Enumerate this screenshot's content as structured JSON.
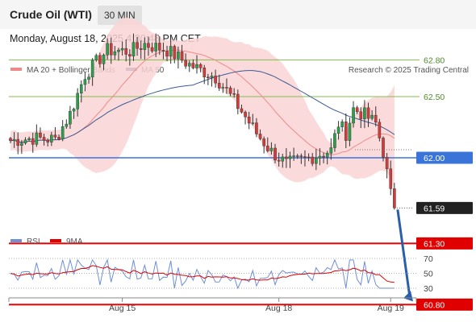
{
  "header": {
    "title": "Crude Oil (WTI)",
    "timeframe": "30 MIN",
    "date": "Monday, August 18, 2025 4:30:48 PM CET"
  },
  "legend": {
    "items": [
      {
        "label": "MA 20 + Bollinger Bands",
        "color": "#f08a8a"
      },
      {
        "label": "MA 50",
        "color": "#3c5a96"
      }
    ],
    "source": "Research © 2025 Trading Central"
  },
  "rsi_legend": {
    "items": [
      {
        "label": "RSI",
        "color": "#6f8fd8"
      },
      {
        "label": "9MA",
        "color": "#e00000"
      }
    ]
  },
  "chart_data": [
    {
      "type": "line",
      "subtype": "candlestick",
      "series": [
        {
          "name": "MA 20 + Bollinger Bands"
        },
        {
          "name": "MA 50"
        }
      ],
      "x_ticks": [
        {
          "label": "Aug 15",
          "index": 30
        },
        {
          "label": "Aug 18",
          "index": 72
        },
        {
          "label": "Aug 19",
          "index": 102
        }
      ],
      "ylim": [
        60.6,
        63.3
      ],
      "levels": [
        {
          "value": 62.8,
          "label": "62.80",
          "kind": "resistance",
          "color": "#7fbf4d"
        },
        {
          "value": 62.5,
          "label": "62.50",
          "kind": "resistance",
          "color": "#7fbf4d"
        },
        {
          "value": 62.0,
          "label": "62.00",
          "kind": "pivot",
          "color": "#3b74d9"
        },
        {
          "value": 61.59,
          "label": "61.59",
          "kind": "last-price",
          "color": "#222222"
        },
        {
          "value": 61.3,
          "label": "61.30",
          "kind": "support",
          "color": "#e00000"
        },
        {
          "value": 60.8,
          "label": "60.80",
          "kind": "support",
          "color": "#e00000"
        }
      ],
      "arrow": {
        "from_value": 61.59,
        "to_value": 60.8,
        "color": "#2b5ea8"
      }
    },
    {
      "type": "line",
      "series": [
        {
          "name": "RSI"
        },
        {
          "name": "9MA"
        }
      ],
      "ylim": [
        25,
        80
      ],
      "levels": [
        {
          "value": 70,
          "label": "70"
        },
        {
          "value": 50,
          "label": "50"
        },
        {
          "value": 30,
          "label": "30"
        }
      ]
    }
  ]
}
